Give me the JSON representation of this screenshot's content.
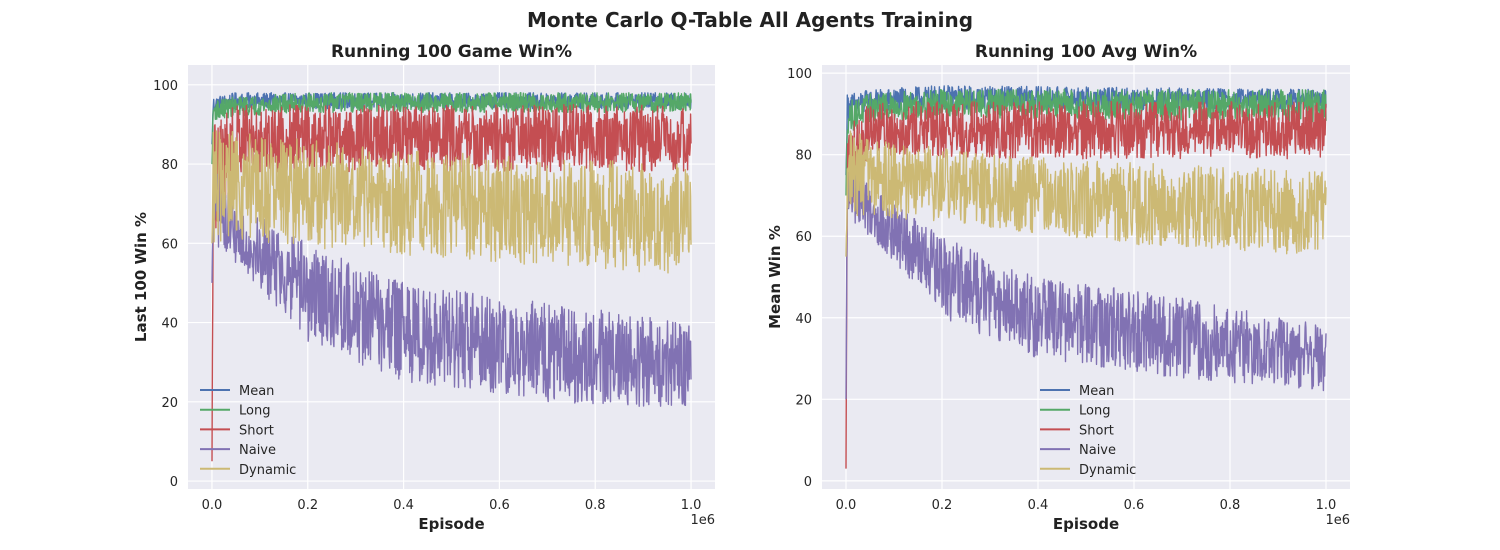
{
  "suptitle": "Monte Carlo Q-Table All Agents Training",
  "colors": {
    "Mean": "#4c72b0",
    "Long": "#55a868",
    "Short": "#c44e52",
    "Naive": "#8172b3",
    "Dynamic": "#ccb974",
    "axes_bg": "#eaeaf2",
    "grid": "#ffffff"
  },
  "chart_data": [
    {
      "type": "line",
      "title": "Running 100 Game Win%",
      "xlabel": "Episode",
      "ylabel": "Last 100 Win %",
      "x_offset_label": "1e6",
      "xlim": [
        -0.05,
        1.05
      ],
      "ylim": [
        -2,
        105
      ],
      "xticks": [
        0.0,
        0.2,
        0.4,
        0.6,
        0.8,
        1.0
      ],
      "xtick_labels": [
        "0.0",
        "0.2",
        "0.4",
        "0.6",
        "0.8",
        "1.0"
      ],
      "yticks": [
        0,
        20,
        40,
        60,
        80,
        100
      ],
      "ytick_labels": [
        "0",
        "20",
        "40",
        "60",
        "80",
        "100"
      ],
      "grid": true,
      "legend": {
        "placement": "lower left",
        "entries": [
          "Mean",
          "Long",
          "Short",
          "Naive",
          "Dynamic"
        ]
      },
      "series": [
        {
          "name": "Mean",
          "start": 85,
          "envelope": [
            [
              0.0,
              93,
              97
            ],
            [
              0.05,
              94,
              98
            ],
            [
              0.2,
              94,
              98
            ],
            [
              1.0,
              94,
              98
            ]
          ]
        },
        {
          "name": "Long",
          "start": 80,
          "envelope": [
            [
              0.0,
              91,
              96
            ],
            [
              0.05,
              92,
              97
            ],
            [
              0.2,
              93,
              98
            ],
            [
              1.0,
              93,
              98
            ]
          ]
        },
        {
          "name": "Short",
          "start": 5,
          "envelope": [
            [
              0.0,
              60,
              90
            ],
            [
              0.05,
              78,
              95
            ],
            [
              0.2,
              78,
              95
            ],
            [
              1.0,
              78,
              95
            ]
          ]
        },
        {
          "name": "Naive",
          "start": 50,
          "envelope": [
            [
              0.0,
              60,
              80
            ],
            [
              0.05,
              55,
              70
            ],
            [
              0.2,
              35,
              60
            ],
            [
              0.4,
              25,
              50
            ],
            [
              0.7,
              20,
              45
            ],
            [
              1.0,
              18,
              40
            ]
          ]
        },
        {
          "name": "Dynamic",
          "start": 60,
          "envelope": [
            [
              0.0,
              60,
              90
            ],
            [
              0.05,
              60,
              88
            ],
            [
              0.3,
              58,
              85
            ],
            [
              0.6,
              55,
              82
            ],
            [
              1.0,
              52,
              80
            ]
          ]
        }
      ]
    },
    {
      "type": "line",
      "title": "Running 100 Avg Win%",
      "xlabel": "Episode",
      "ylabel": "Mean Win %",
      "x_offset_label": "1e6",
      "xlim": [
        -0.05,
        1.05
      ],
      "ylim": [
        -2,
        102
      ],
      "xticks": [
        0.0,
        0.2,
        0.4,
        0.6,
        0.8,
        1.0
      ],
      "xtick_labels": [
        "0.0",
        "0.2",
        "0.4",
        "0.6",
        "0.8",
        "1.0"
      ],
      "yticks": [
        0,
        20,
        40,
        60,
        80,
        100
      ],
      "ytick_labels": [
        "0",
        "20",
        "40",
        "60",
        "80",
        "100"
      ],
      "grid": true,
      "legend": {
        "placement": "lower center",
        "entries": [
          "Mean",
          "Long",
          "Short",
          "Naive",
          "Dynamic"
        ]
      },
      "series": [
        {
          "name": "Mean",
          "start": 75,
          "envelope": [
            [
              0.0,
              88,
              95
            ],
            [
              0.05,
              90,
              96
            ],
            [
              0.2,
              91,
              97
            ],
            [
              1.0,
              91,
              96
            ]
          ]
        },
        {
          "name": "Long",
          "start": 70,
          "envelope": [
            [
              0.0,
              85,
              93
            ],
            [
              0.05,
              88,
              95
            ],
            [
              0.2,
              89,
              96
            ],
            [
              1.0,
              88,
              96
            ]
          ]
        },
        {
          "name": "Short",
          "start": 3,
          "envelope": [
            [
              0.0,
              62,
              88
            ],
            [
              0.05,
              80,
              93
            ],
            [
              0.2,
              79,
              93
            ],
            [
              1.0,
              79,
              93
            ]
          ]
        },
        {
          "name": "Naive",
          "start": 20,
          "envelope": [
            [
              0.0,
              65,
              82
            ],
            [
              0.05,
              60,
              72
            ],
            [
              0.2,
              40,
              60
            ],
            [
              0.4,
              30,
              50
            ],
            [
              0.7,
              25,
              45
            ],
            [
              1.0,
              22,
              38
            ]
          ]
        },
        {
          "name": "Dynamic",
          "start": 55,
          "envelope": [
            [
              0.0,
              65,
              87
            ],
            [
              0.05,
              65,
              84
            ],
            [
              0.3,
              62,
              80
            ],
            [
              0.6,
              58,
              78
            ],
            [
              1.0,
              55,
              76
            ]
          ]
        }
      ]
    }
  ]
}
